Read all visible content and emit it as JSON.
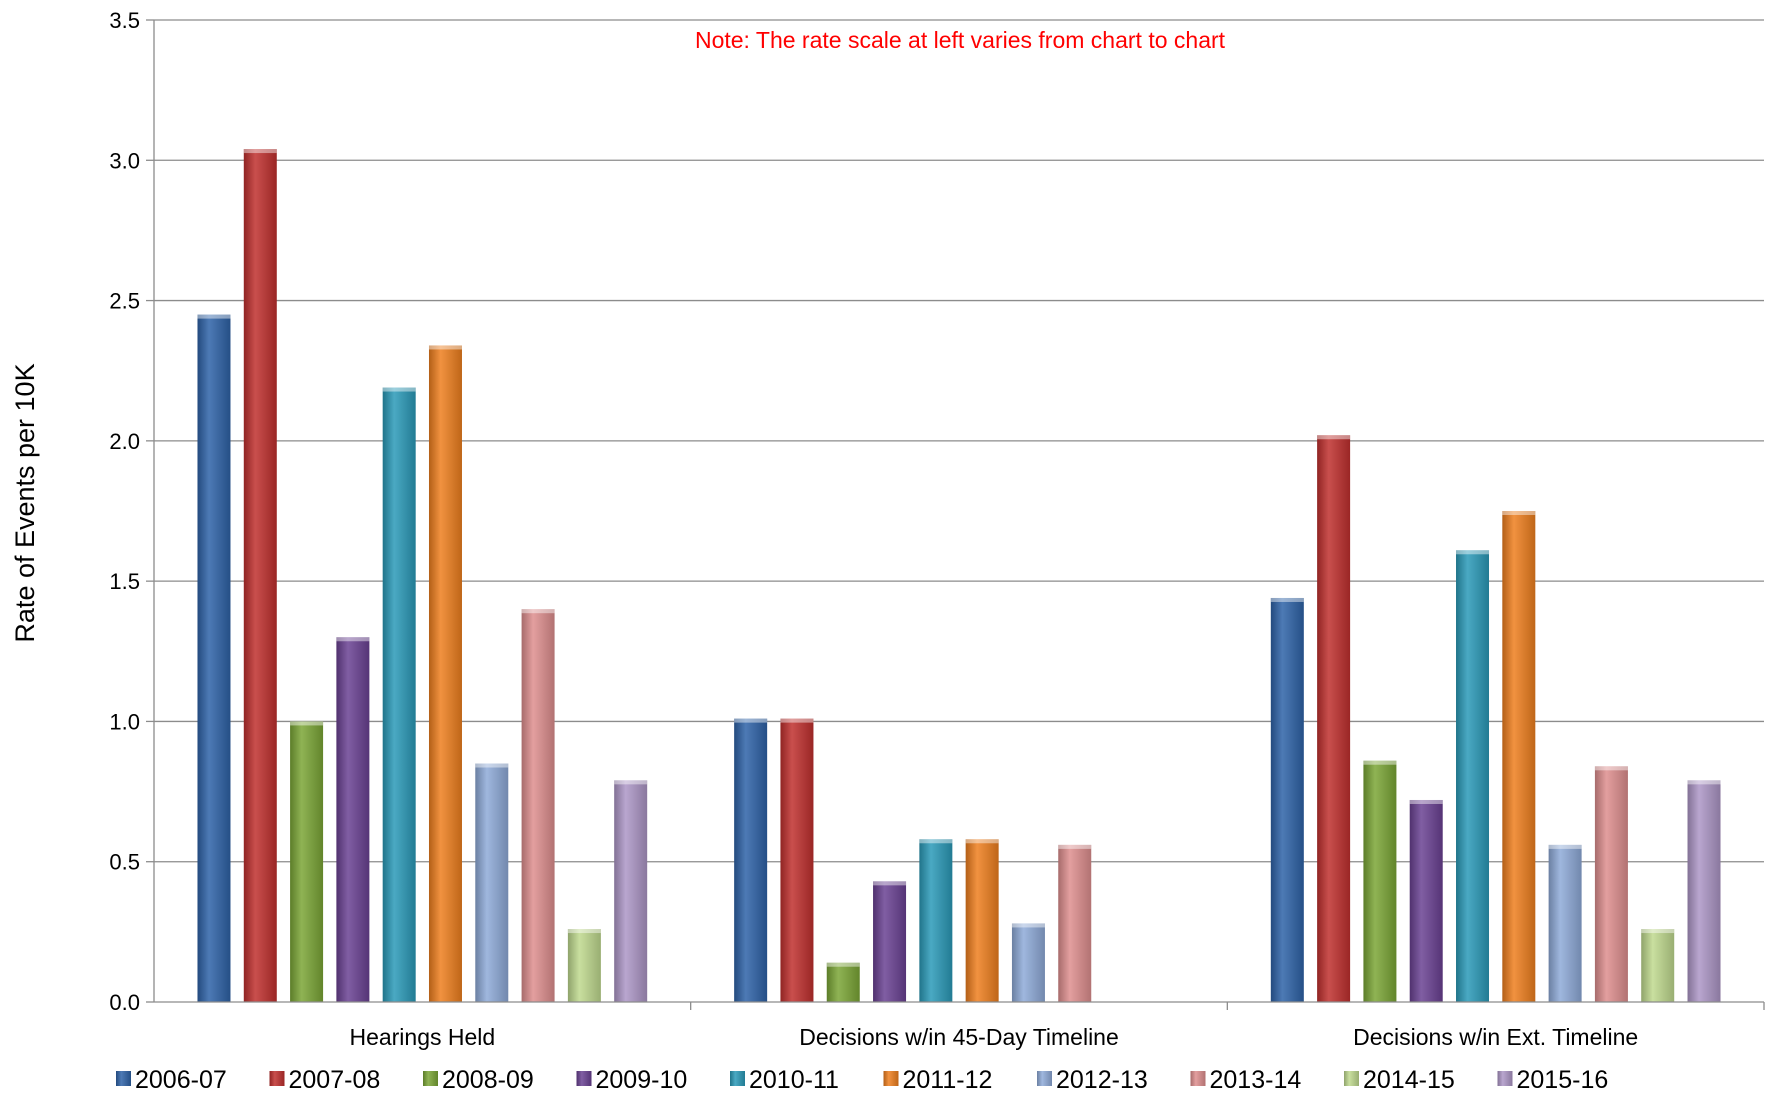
{
  "chart_data": {
    "type": "bar",
    "note": "Note:  The rate scale at left varies from chart to chart",
    "ylabel": "Rate of Events per 10K",
    "ylim": [
      0,
      3.5
    ],
    "yticks": [
      "0.0",
      "0.5",
      "1.0",
      "1.5",
      "2.0",
      "2.5",
      "3.0",
      "3.5"
    ],
    "grid": true,
    "legend_position": "bottom",
    "categories": [
      "Hearings Held",
      "Decisions w/in 45-Day Timeline",
      "Decisions w/in Ext. Timeline"
    ],
    "series": [
      {
        "name": "2006-07",
        "color": "#2e63a8",
        "values": [
          2.45,
          1.01,
          1.44
        ]
      },
      {
        "name": "2007-08",
        "color": "#c0302e",
        "values": [
          3.04,
          1.01,
          2.02
        ]
      },
      {
        "name": "2008-09",
        "color": "#7ba636",
        "values": [
          1.0,
          0.14,
          0.86
        ]
      },
      {
        "name": "2009-10",
        "color": "#6a4193",
        "values": [
          1.3,
          0.43,
          0.72
        ]
      },
      {
        "name": "2010-11",
        "color": "#2a9ab8",
        "values": [
          2.19,
          0.58,
          1.61
        ]
      },
      {
        "name": "2011-12",
        "color": "#ef7f1e",
        "values": [
          2.34,
          0.58,
          1.75
        ]
      },
      {
        "name": "2012-13",
        "color": "#8eaad8",
        "values": [
          0.85,
          0.28,
          0.56
        ]
      },
      {
        "name": "2013-14",
        "color": "#de8e8e",
        "values": [
          1.4,
          0.56,
          0.84
        ]
      },
      {
        "name": "2014-15",
        "color": "#bfd98e",
        "values": [
          0.26,
          null,
          0.26
        ]
      },
      {
        "name": "2015-16",
        "color": "#ad96c6",
        "values": [
          0.79,
          null,
          0.79
        ]
      }
    ]
  },
  "colors": {
    "note": "#ff0000",
    "grid": "#8c8c8c",
    "axis": "#8c8c8c"
  }
}
